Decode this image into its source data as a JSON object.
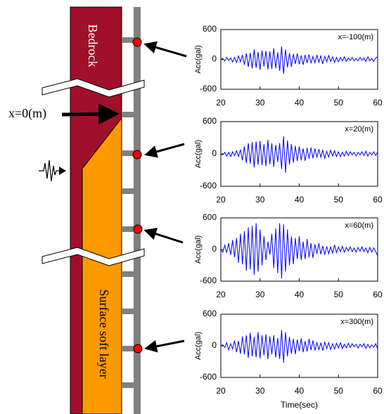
{
  "diagram": {
    "labels": {
      "bedrock": "Bedrock",
      "surface": "Surface soft layer",
      "origin": "x=0(m)"
    }
  },
  "chart_data": [
    {
      "type": "line",
      "annotation": "x=-100(m)",
      "ylabel": "Acc(gal)",
      "xlim": [
        20,
        60
      ],
      "xticks": [
        20,
        30,
        40,
        50,
        60
      ],
      "ylim": [
        -600,
        600
      ],
      "yticks": [
        600,
        0,
        -600
      ],
      "x": [
        20,
        20.5,
        21,
        21.5,
        22,
        22.5,
        23,
        23.5,
        24,
        24.5,
        25,
        25.5,
        26,
        26.5,
        27,
        27.5,
        28,
        28.5,
        29,
        29.5,
        30,
        30.5,
        31,
        31.5,
        32,
        32.5,
        33,
        33.5,
        34,
        34.5,
        35,
        35.5,
        36,
        36.5,
        37,
        37.5,
        38,
        38.5,
        39,
        39.5,
        40,
        40.5,
        41,
        41.5,
        42,
        42.5,
        43,
        43.5,
        44,
        44.5,
        45,
        45.5,
        46,
        46.5,
        47,
        47.5,
        48,
        48.5,
        49,
        49.5,
        50,
        50.5,
        51,
        51.5,
        52,
        52.5,
        53,
        53.5,
        54,
        54.5,
        55,
        55.5,
        56,
        56.5,
        57,
        57.5,
        58,
        58.5,
        59,
        59.5,
        60
      ],
      "series": [
        {
          "color": "#0000ff",
          "values": [
            0,
            20,
            -30,
            40,
            -20,
            30,
            -50,
            40,
            -60,
            70,
            -50,
            90,
            -110,
            120,
            -150,
            130,
            -180,
            200,
            -170,
            150,
            -210,
            180,
            -140,
            170,
            -200,
            160,
            -190,
            220,
            -180,
            140,
            -230,
            260,
            -290,
            200,
            -160,
            130,
            -150,
            110,
            -90,
            120,
            -100,
            80,
            -110,
            90,
            -70,
            100,
            -80,
            60,
            -70,
            90,
            -60,
            70,
            -90,
            60,
            -50,
            80,
            -40,
            50,
            -60,
            40,
            -50,
            40,
            -30,
            50,
            -40,
            30,
            -20,
            40,
            -30,
            20,
            -30,
            40,
            -20,
            30,
            -40,
            50,
            -30,
            20,
            -40,
            30,
            50
          ]
        }
      ]
    },
    {
      "type": "line",
      "annotation": "x=20(m)",
      "ylabel": "Acc(gal)",
      "xlim": [
        20,
        60
      ],
      "xticks": [
        20,
        30,
        40,
        50,
        60
      ],
      "ylim": [
        -600,
        600
      ],
      "yticks": [
        600,
        0,
        -600
      ],
      "x": [
        20,
        20.5,
        21,
        21.5,
        22,
        22.5,
        23,
        23.5,
        24,
        24.5,
        25,
        25.5,
        26,
        26.5,
        27,
        27.5,
        28,
        28.5,
        29,
        29.5,
        30,
        30.5,
        31,
        31.5,
        32,
        32.5,
        33,
        33.5,
        34,
        34.5,
        35,
        35.5,
        36,
        36.5,
        37,
        37.5,
        38,
        38.5,
        39,
        39.5,
        40,
        40.5,
        41,
        41.5,
        42,
        42.5,
        43,
        43.5,
        44,
        44.5,
        45,
        45.5,
        46,
        46.5,
        47,
        47.5,
        48,
        48.5,
        49,
        49.5,
        50,
        50.5,
        51,
        51.5,
        52,
        52.5,
        53,
        53.5,
        54,
        54.5,
        55,
        55.5,
        56,
        56.5,
        57,
        57.5,
        58,
        58.5,
        59,
        59.5,
        60
      ],
      "series": [
        {
          "color": "#0000ff",
          "values": [
            0,
            -20,
            30,
            -40,
            30,
            -50,
            40,
            -30,
            60,
            -50,
            80,
            -120,
            140,
            -170,
            200,
            -180,
            220,
            -250,
            230,
            -200,
            240,
            -210,
            180,
            -230,
            260,
            -190,
            200,
            -240,
            170,
            -150,
            200,
            -280,
            330,
            -350,
            250,
            -200,
            180,
            -160,
            150,
            -130,
            140,
            -120,
            100,
            -130,
            110,
            -90,
            120,
            -80,
            100,
            -70,
            90,
            -60,
            70,
            -80,
            50,
            -60,
            70,
            -40,
            60,
            -50,
            40,
            -50,
            30,
            -40,
            50,
            -30,
            40,
            -20,
            30,
            -40,
            30,
            -20,
            40,
            -30,
            50,
            -40,
            30,
            -20,
            40,
            -30,
            40
          ]
        }
      ]
    },
    {
      "type": "line",
      "annotation": "x=60(m)",
      "ylabel": "Acc(gal)",
      "xlim": [
        20,
        60
      ],
      "xticks": [
        20,
        30,
        40,
        50,
        60
      ],
      "ylim": [
        -600,
        600
      ],
      "yticks": [
        600,
        0,
        -600
      ],
      "x": [
        20,
        20.5,
        21,
        21.5,
        22,
        22.5,
        23,
        23.5,
        24,
        24.5,
        25,
        25.5,
        26,
        26.5,
        27,
        27.5,
        28,
        28.5,
        29,
        29.5,
        30,
        30.5,
        31,
        31.5,
        32,
        32.5,
        33,
        33.5,
        34,
        34.5,
        35,
        35.5,
        36,
        36.5,
        37,
        37.5,
        38,
        38.5,
        39,
        39.5,
        40,
        40.5,
        41,
        41.5,
        42,
        42.5,
        43,
        43.5,
        44,
        44.5,
        45,
        45.5,
        46,
        46.5,
        47,
        47.5,
        48,
        48.5,
        49,
        49.5,
        50,
        50.5,
        51,
        51.5,
        52,
        52.5,
        53,
        53.5,
        54,
        54.5,
        55,
        55.5,
        56,
        56.5,
        57,
        57.5,
        58,
        58.5,
        59,
        59.5,
        60
      ],
      "series": [
        {
          "color": "#0000ff",
          "values": [
            0,
            -50,
            80,
            -60,
            120,
            -100,
            180,
            -150,
            220,
            -250,
            300,
            -280,
            350,
            -400,
            420,
            -380,
            450,
            -480,
            500,
            -420,
            380,
            -300,
            250,
            -200,
            150,
            -100,
            300,
            -350,
            400,
            -450,
            500,
            -550,
            480,
            -420,
            380,
            -300,
            250,
            -280,
            220,
            -180,
            250,
            -200,
            150,
            -180,
            200,
            -150,
            120,
            -160,
            100,
            -80,
            120,
            -90,
            70,
            -100,
            60,
            -80,
            50,
            -70,
            90,
            -60,
            50,
            -40,
            60,
            -50,
            40,
            -30,
            50,
            -40,
            30,
            -50,
            40,
            -30,
            50,
            -40,
            30,
            -60,
            40,
            -50,
            30,
            -40,
            -120
          ]
        }
      ]
    },
    {
      "type": "line",
      "annotation": "x=300(m)",
      "ylabel": "Acc(gal)",
      "xlabel": "Time(sec)",
      "xlim": [
        20,
        60
      ],
      "xticks": [
        20,
        30,
        40,
        50,
        60
      ],
      "ylim": [
        -600,
        600
      ],
      "yticks": [
        600,
        0,
        -600
      ],
      "x": [
        20,
        20.5,
        21,
        21.5,
        22,
        22.5,
        23,
        23.5,
        24,
        24.5,
        25,
        25.5,
        26,
        26.5,
        27,
        27.5,
        28,
        28.5,
        29,
        29.5,
        30,
        30.5,
        31,
        31.5,
        32,
        32.5,
        33,
        33.5,
        34,
        34.5,
        35,
        35.5,
        36,
        36.5,
        37,
        37.5,
        38,
        38.5,
        39,
        39.5,
        40,
        40.5,
        41,
        41.5,
        42,
        42.5,
        43,
        43.5,
        44,
        44.5,
        45,
        45.5,
        46,
        46.5,
        47,
        47.5,
        48,
        48.5,
        49,
        49.5,
        50,
        50.5,
        51,
        51.5,
        52,
        52.5,
        53,
        53.5,
        54,
        54.5,
        55,
        55.5,
        56,
        56.5,
        57,
        57.5,
        58,
        58.5,
        59,
        59.5,
        60
      ],
      "series": [
        {
          "color": "#0000ff",
          "values": [
            0,
            20,
            -30,
            60,
            -80,
            40,
            -60,
            100,
            -120,
            90,
            -150,
            180,
            -160,
            200,
            -230,
            250,
            -200,
            170,
            -220,
            260,
            -240,
            200,
            -180,
            220,
            -250,
            180,
            -160,
            200,
            -220,
            150,
            -250,
            300,
            -320,
            260,
            -200,
            170,
            -150,
            130,
            -160,
            120,
            -100,
            140,
            -120,
            90,
            -110,
            130,
            -80,
            100,
            -90,
            70,
            -80,
            60,
            -90,
            70,
            -50,
            60,
            -70,
            40,
            -60,
            50,
            -40,
            60,
            -50,
            30,
            -40,
            50,
            -30,
            40,
            -20,
            30,
            -40,
            30,
            -20,
            40,
            -50,
            30,
            -40,
            20,
            -30,
            40,
            -60
          ]
        }
      ]
    }
  ]
}
